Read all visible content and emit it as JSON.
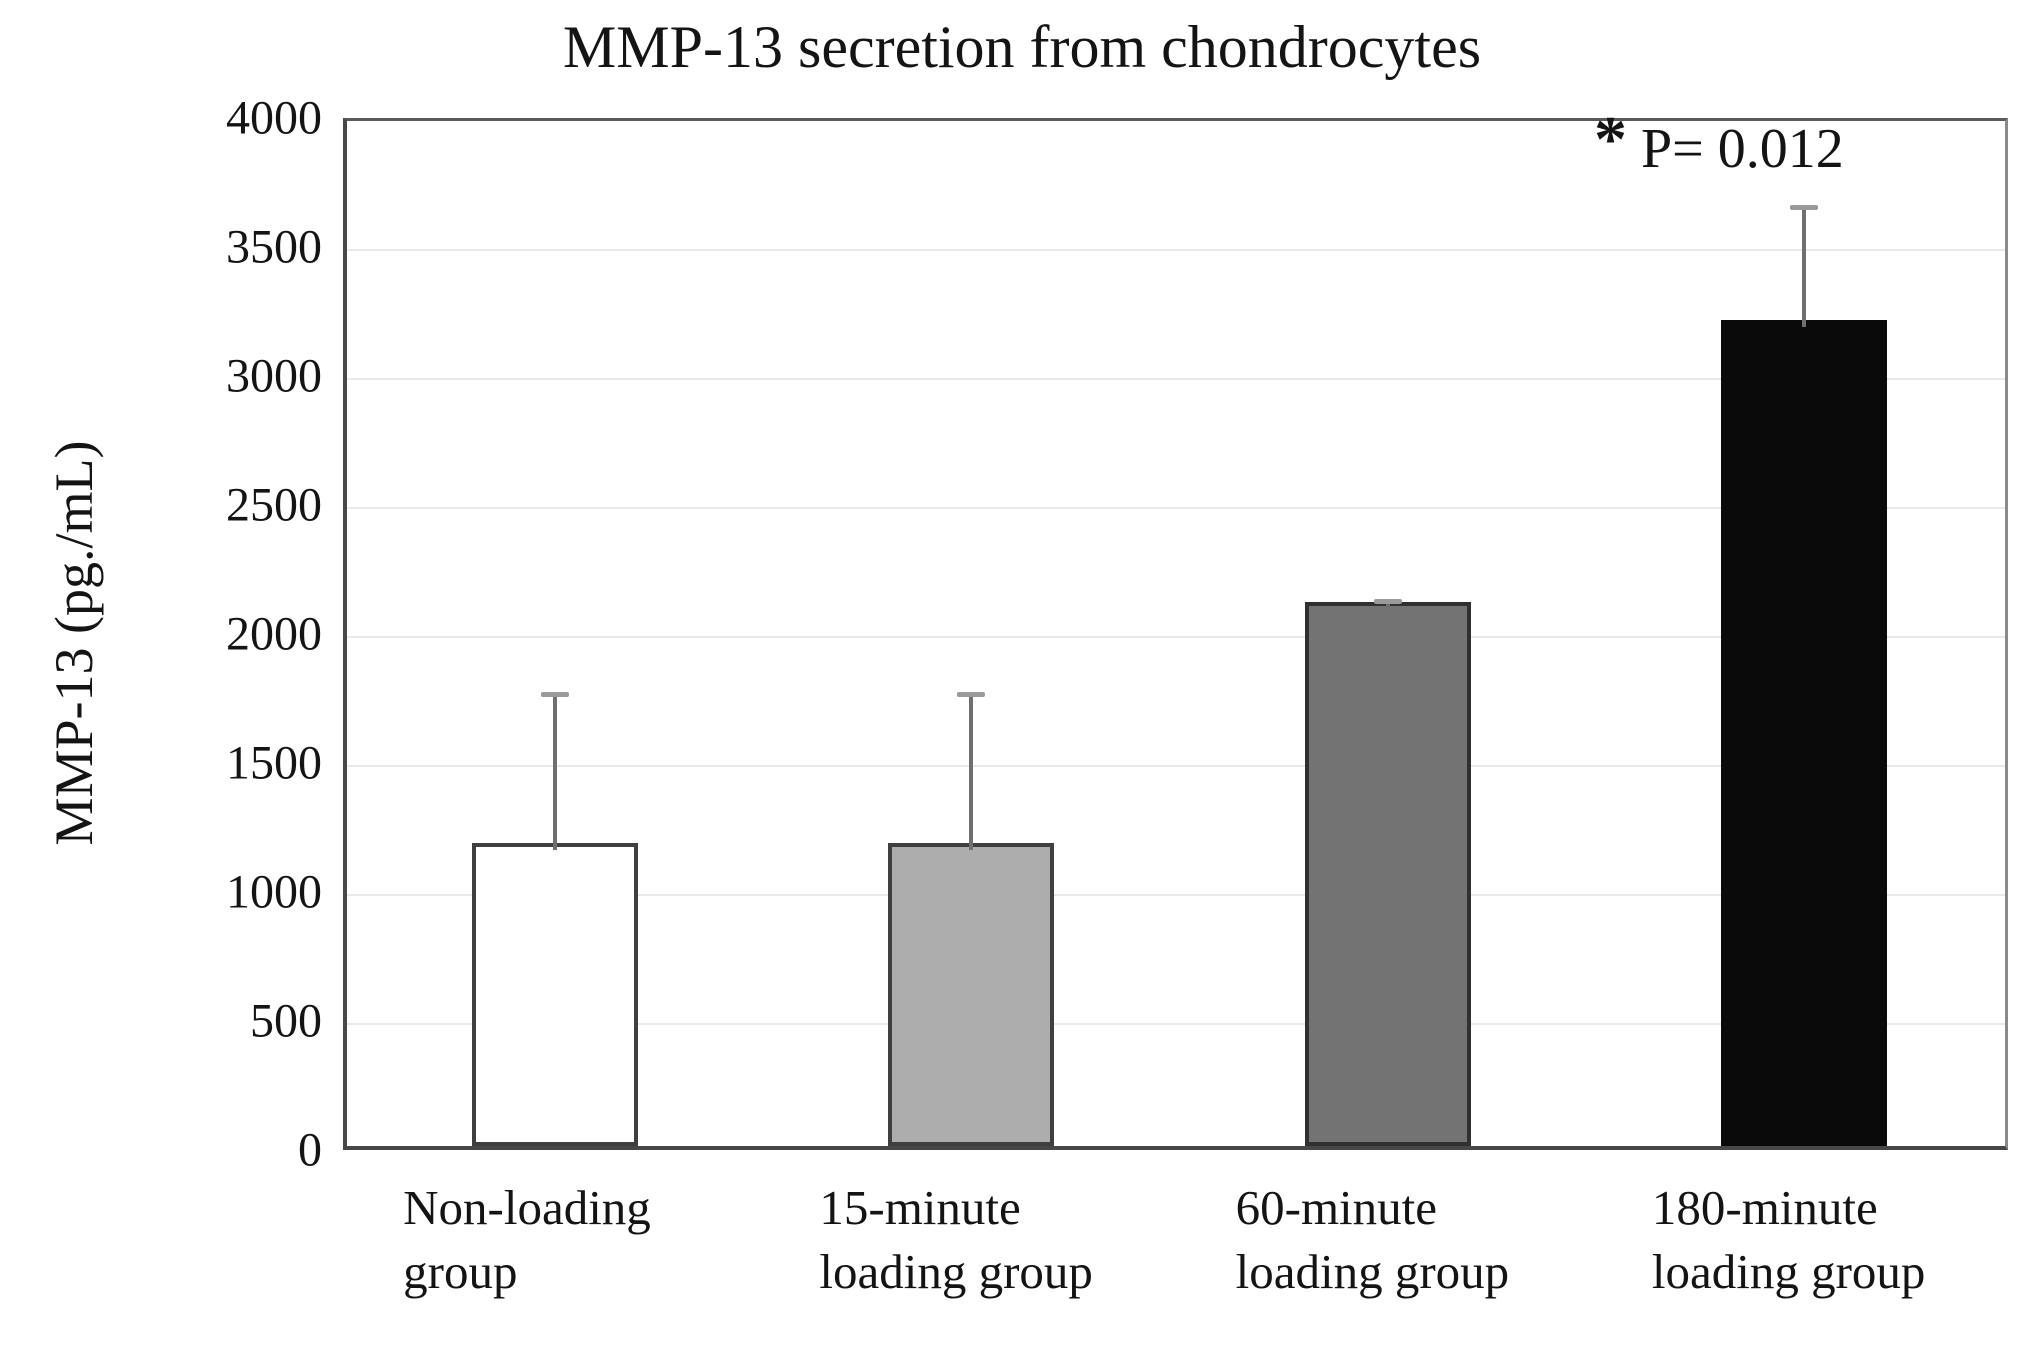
{
  "figure": {
    "title": "MMP-13 secretion from chondrocytes",
    "y_axis_title": "MMP-13 (pg./mL)",
    "annotation_star": "*",
    "annotation_text": "P= 0.012"
  },
  "chart_data": {
    "type": "bar",
    "title": "MMP-13 secretion from chondrocytes",
    "xlabel": "",
    "ylabel": "MMP-13 (pg./mL)",
    "ylim": [
      0,
      4000
    ],
    "ytick_step": 500,
    "ytick_labels": [
      "0",
      "500",
      "1000",
      "1500",
      "2000",
      "2500",
      "3000",
      "3500",
      "4000"
    ],
    "grid": true,
    "legend": false,
    "categories": [
      "Non-loading group",
      "15-minute loading group",
      "60-minute loading group",
      "180-minute loading group"
    ],
    "category_label_lines": [
      [
        "Non-loading",
        "group"
      ],
      [
        "15-minute",
        "loading group"
      ],
      [
        "60-minute",
        "loading group"
      ],
      [
        "180-minute",
        "loading group"
      ]
    ],
    "series": [
      {
        "name": "MMP-13 (pg./mL)",
        "values": [
          1175,
          1175,
          2110,
          3200
        ],
        "error_up": [
          605,
          605,
          30,
          465
        ]
      }
    ],
    "bar_fill_colors": [
      "#ffffff",
      "#adadad",
      "#737373",
      "#0a0a0a"
    ],
    "bar_border_colors": [
      "#3f3f3f",
      "#3f3f3f",
      "#303030",
      "#0a0a0a"
    ],
    "annotation": "* P= 0.012",
    "annotation_target_category": "180-minute loading group",
    "gridline_color": "#e9e9e9",
    "error_bar_color": "#6f6f6f"
  }
}
